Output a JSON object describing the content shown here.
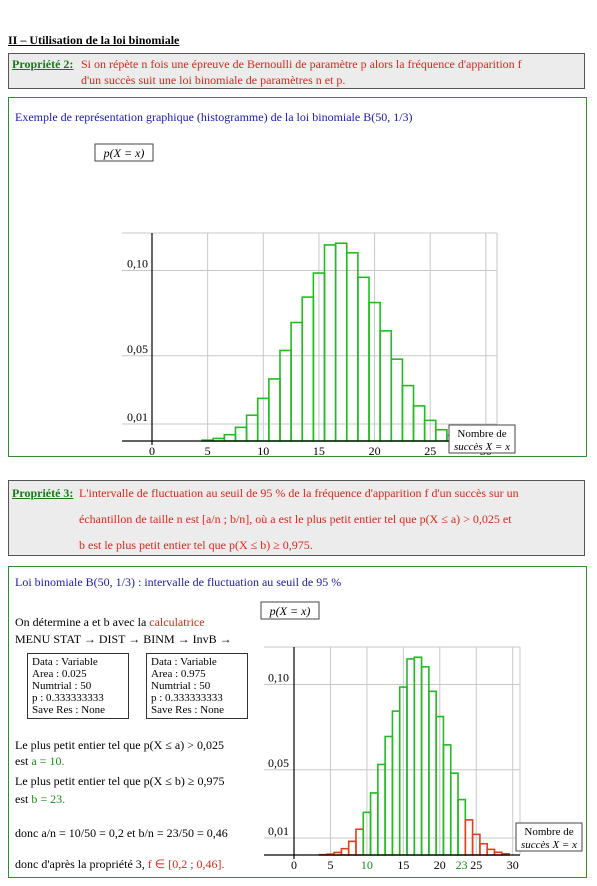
{
  "section_title": "II – Utilisation de la loi binomiale",
  "prop2": {
    "label": "Propriété 2:",
    "line1": "Si on répète n fois une épreuve de Bernoulli de paramètre p alors la fréquence d'apparition f",
    "line2": "d'un succès suit une loi binomiale de paramètres n et p."
  },
  "example": {
    "caption": "Exemple de représentation graphique (histogramme) de la loi binomiale B(50, 1/3)"
  },
  "prop3": {
    "label": "Propriété 3:",
    "line1": "L'intervalle de fluctuation au seuil de 95 % de la fréquence d'apparition f d'un succès sur un",
    "line2": "échantillon de taille n est [a/n ; b/n], où a est le plus petit entier tel que p(X ≤ a) > 0,025 et",
    "line3": "b est le plus petit entier tel que p(X ≤ b) ≥ 0,975."
  },
  "part2": {
    "caption": "Loi binomiale B(50, 1/3) : intervalle de fluctuation au seuil de 95 %",
    "determine_prefix": "On détermine a et b avec la ",
    "determine_calc": "calculatrice",
    "menu": "MENU STAT → DIST → BINM → InvB →",
    "calc1": [
      "Data : Variable",
      "Area : 0.025",
      "Numtrial : 50",
      "p : 0.333333333",
      "Save Res : None"
    ],
    "calc2": [
      "Data : Variable",
      "Area : 0.975",
      "Numtrial : 50",
      "p : 0.333333333",
      "Save Res : None"
    ],
    "a_line1": "Le plus petit entier tel que p(X ≤ a) > 0,025",
    "a_line2_prefix": "est ",
    "a_value": "a = 10.",
    "b_line1": "Le plus petit entier tel que p(X ≤ b) ≥ 0,975",
    "b_line2_prefix": "est ",
    "b_value": "b = 23.",
    "donc1": "donc a/n = 10/50 = 0,2      et   b/n = 23/50 = 0,46",
    "donc2_prefix": "donc d'après la propriété 3, ",
    "donc2_result": "f ∈ [0,2 ; 0,46]."
  },
  "chart_data": [
    {
      "type": "bar",
      "ylabel": "p(X = x)",
      "xlabel": "Nombre de succès X = x",
      "x_ticks": [
        "0",
        "5",
        "10",
        "15",
        "20",
        "25",
        "30"
      ],
      "y_ticks": [
        "0,01",
        "0,05",
        "0,10"
      ],
      "xlim": [
        0,
        31
      ],
      "ylim": [
        0,
        0.122
      ],
      "grid": true,
      "x": [
        5,
        6,
        7,
        8,
        9,
        10,
        11,
        12,
        13,
        14,
        15,
        16,
        17,
        18,
        19,
        20,
        21,
        22,
        23,
        24,
        25,
        26,
        27,
        28
      ],
      "values": [
        0.0005,
        0.0015,
        0.0037,
        0.008,
        0.0151,
        0.025,
        0.0364,
        0.0531,
        0.0695,
        0.0844,
        0.0985,
        0.115,
        0.116,
        0.1104,
        0.096,
        0.0812,
        0.0646,
        0.048,
        0.0325,
        0.0206,
        0.0121,
        0.0066,
        0.0033,
        0.0016
      ],
      "color": "#22bb22"
    },
    {
      "type": "bar",
      "ylabel": "p(X = x)",
      "xlabel": "Nombre de succès X = x",
      "x_ticks": [
        "0",
        "5",
        "10",
        "15",
        "20",
        "23",
        "25",
        "30"
      ],
      "y_ticks": [
        "0,01",
        "0,05",
        "0,10"
      ],
      "xlim": [
        0,
        31
      ],
      "ylim": [
        0,
        0.122
      ],
      "grid": true,
      "x": [
        4,
        5,
        6,
        7,
        8,
        9,
        10,
        11,
        12,
        13,
        14,
        15,
        16,
        17,
        18,
        19,
        20,
        21,
        22,
        23,
        24,
        25,
        26,
        27,
        28,
        29
      ],
      "values": [
        0.0002,
        0.0005,
        0.0015,
        0.0037,
        0.008,
        0.0151,
        0.025,
        0.0364,
        0.0531,
        0.0695,
        0.0844,
        0.0985,
        0.115,
        0.116,
        0.1104,
        0.096,
        0.0812,
        0.0646,
        0.048,
        0.0325,
        0.0206,
        0.0121,
        0.0066,
        0.0033,
        0.0016,
        0.0007
      ],
      "interval": [
        10,
        23
      ],
      "color_in": "#22bb22",
      "color_out": "#e04020"
    }
  ]
}
